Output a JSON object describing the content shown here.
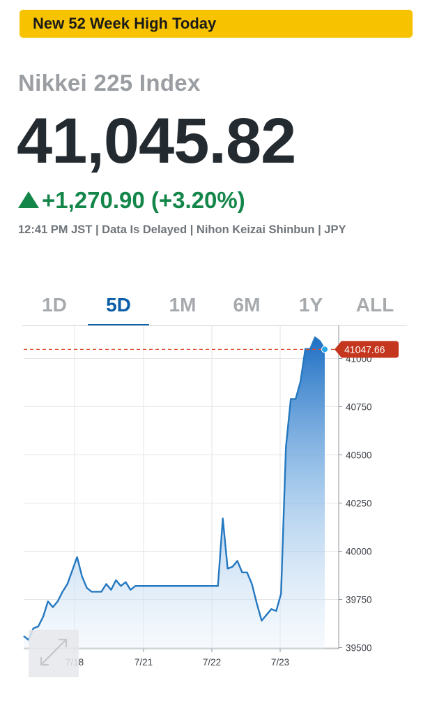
{
  "banner": {
    "text": "New 52 Week High Today",
    "color": "#f7c300"
  },
  "quote": {
    "name": "Nikkei 225 Index",
    "price": "41,045.82",
    "change": "+1,270.90 (+3.20%)",
    "change_color": "#14864a",
    "meta": "12:41 PM JST | Data Is Delayed | Nihon Keizai Shinbun | JPY"
  },
  "tabs": [
    {
      "label": "1D",
      "active": false
    },
    {
      "label": "5D",
      "active": true
    },
    {
      "label": "1M",
      "active": false
    },
    {
      "label": "6M",
      "active": false
    },
    {
      "label": "1Y",
      "active": false
    },
    {
      "label": "ALL",
      "active": false
    }
  ],
  "expand_icon": "expand-arrows-icon",
  "chart_data": {
    "type": "area",
    "ylim": [
      39500,
      41100
    ],
    "y_ticks": [
      39500,
      39750,
      40000,
      40250,
      40500,
      40750,
      41000
    ],
    "x_ticks": [
      "7/18",
      "7/21",
      "7/22",
      "7/23"
    ],
    "grid": true,
    "last_value": 41047.66,
    "last_value_label": "41047.66",
    "line_color": "#2478c0",
    "marker_color": "#e04a2b",
    "series": [
      {
        "values": [
          39560,
          39540,
          39600,
          39610,
          39660,
          39740,
          39710,
          39740,
          39790,
          39830,
          39900,
          39970,
          39870,
          39810,
          39790,
          39790,
          39790,
          39830,
          39800,
          39850,
          39820,
          39840,
          39800,
          39820,
          39820,
          39820,
          39820,
          39820,
          39820,
          39820,
          39820,
          39820,
          39820,
          39820,
          39820,
          39820,
          39820,
          39820,
          39820,
          39820,
          39820,
          40170,
          39910,
          39920,
          39950,
          39890,
          39890,
          39830,
          39730,
          39640,
          39670,
          39700,
          39690,
          39780,
          40540,
          40790,
          40790,
          40880,
          41050,
          41050,
          41110,
          41090,
          41048
        ]
      }
    ]
  }
}
